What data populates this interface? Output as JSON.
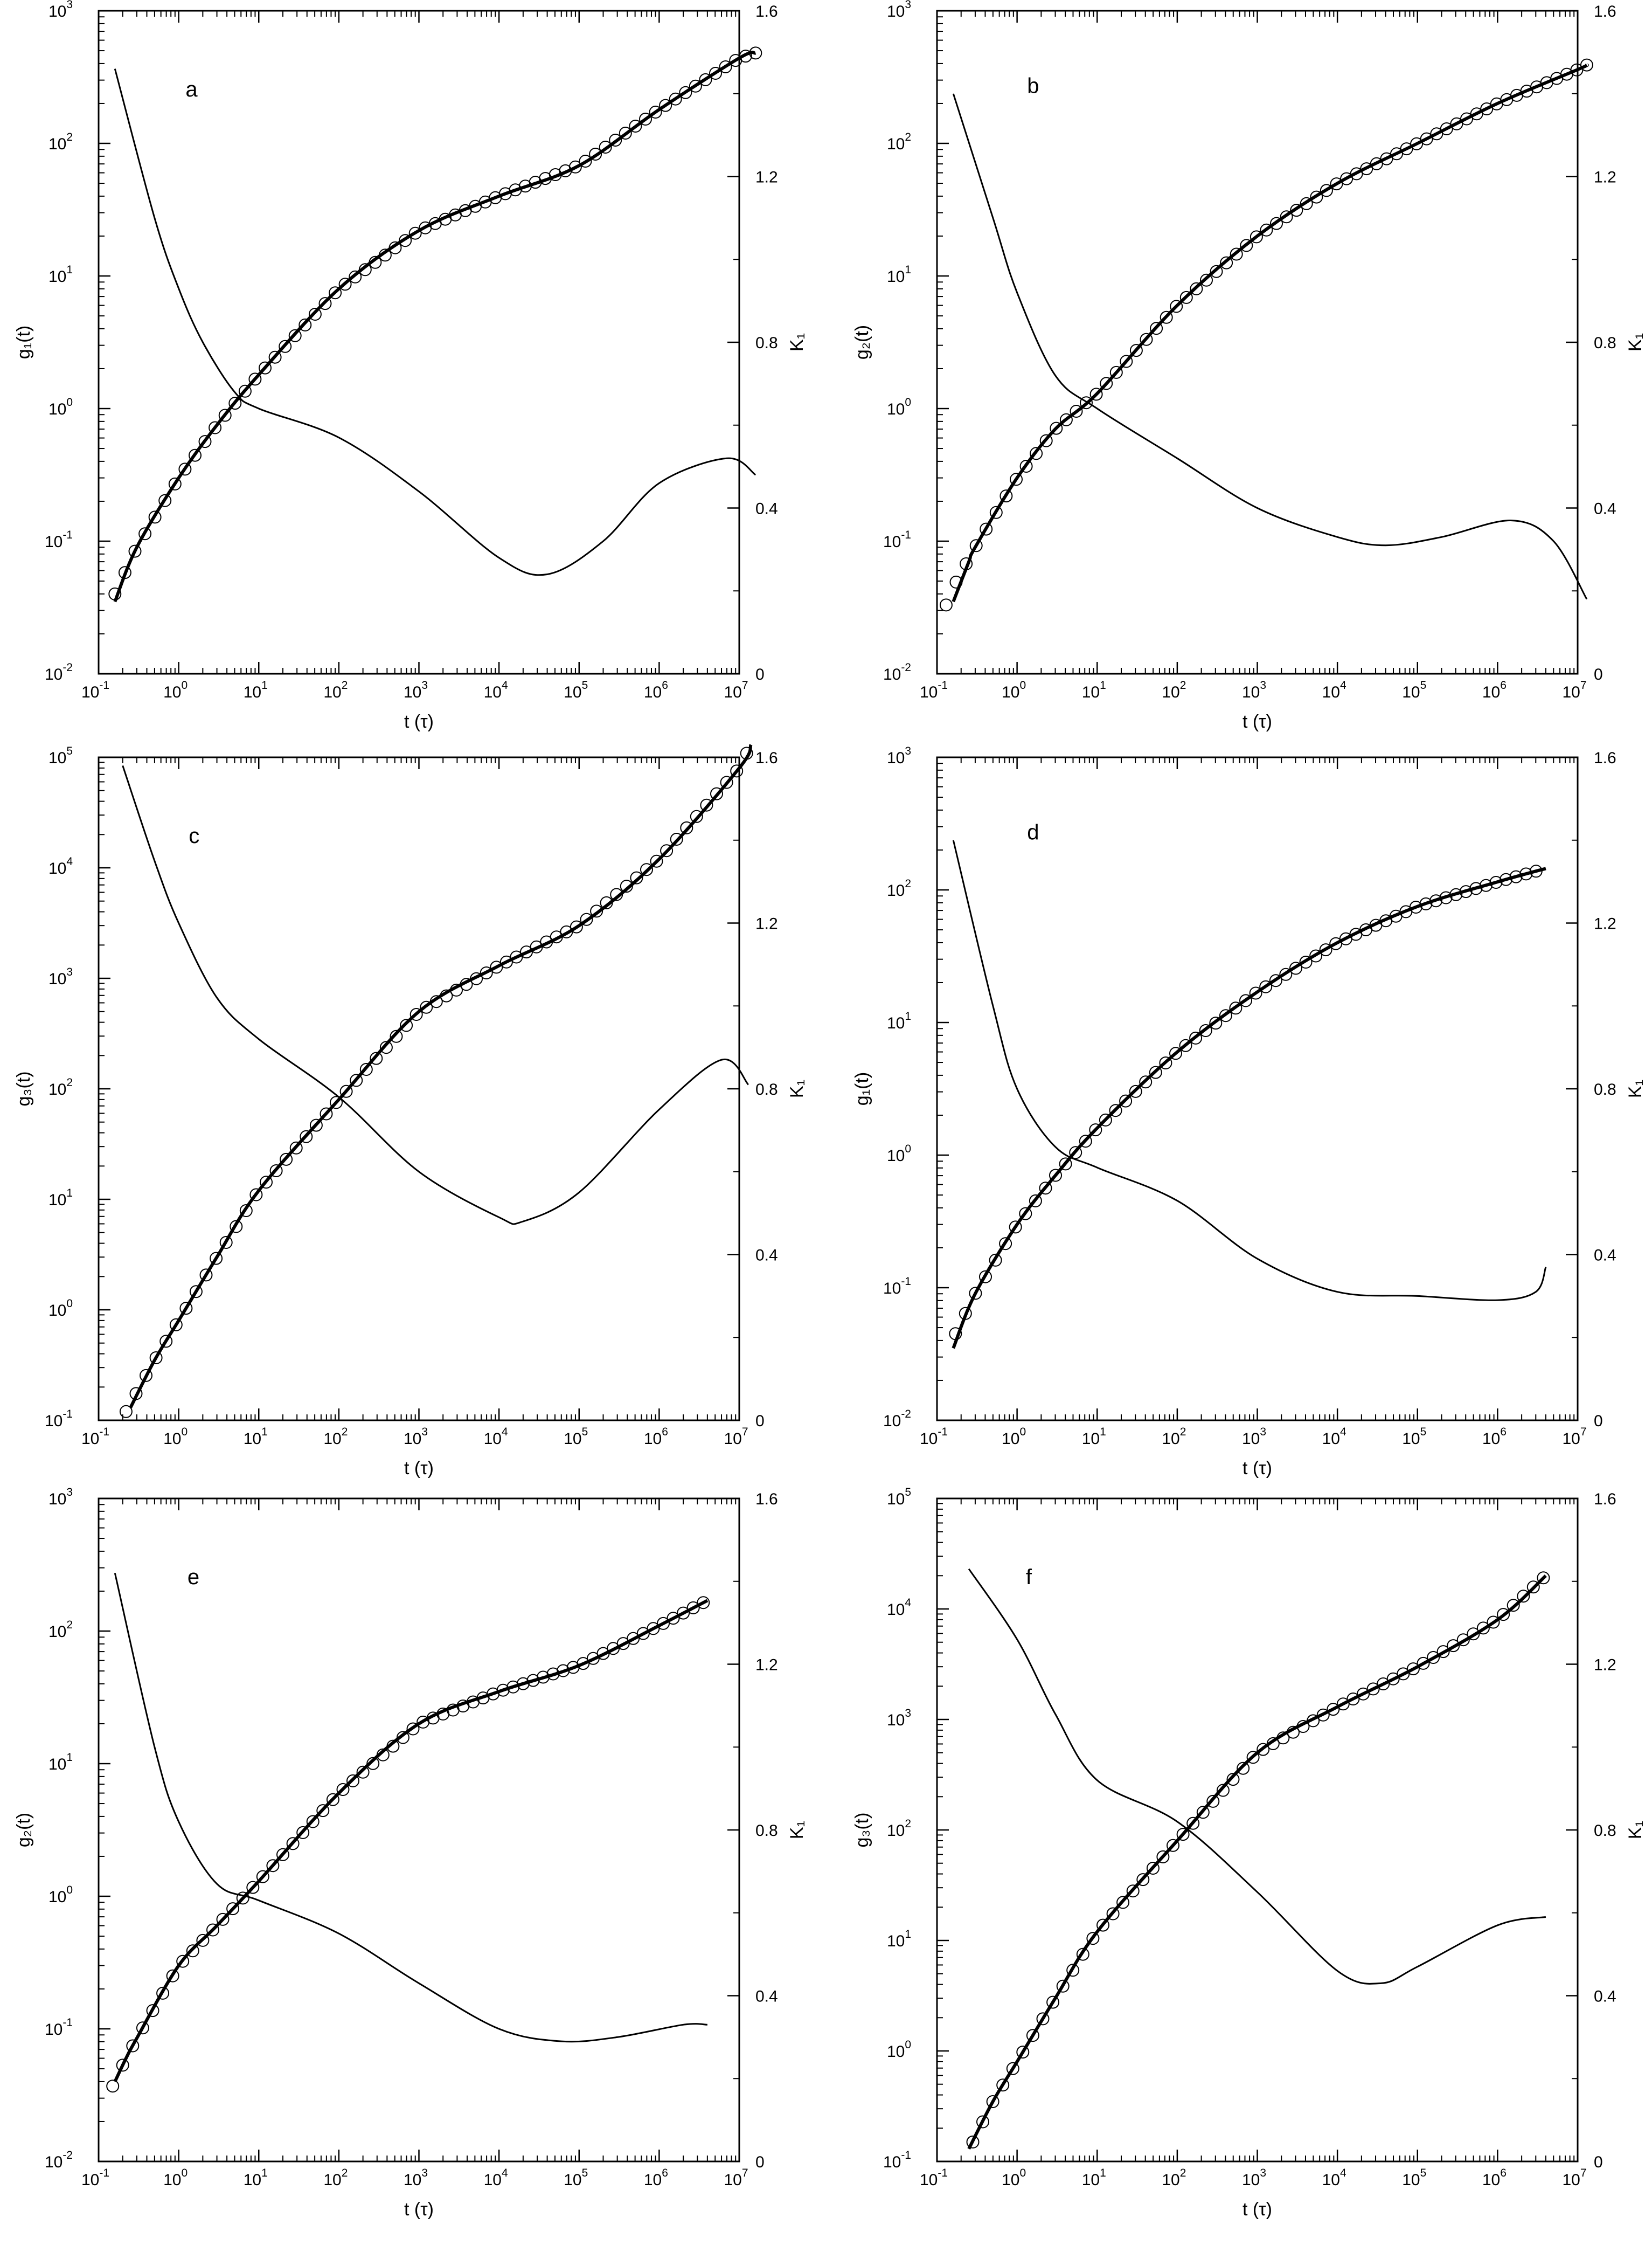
{
  "chart_data": [
    {
      "type": "line",
      "panel_label": "a",
      "xlabel": "t (τ)",
      "ylabel": "g₁(t)",
      "ylabel_right": "K₁",
      "x_scale": "log",
      "y_scale": "log",
      "xlim": [
        0.1,
        20000000
      ],
      "xlim_decades": [
        -1,
        7
      ],
      "ylim": [
        0.01,
        1000
      ],
      "ylim_decades": [
        -2,
        3
      ],
      "y2lim": [
        0,
        1.6
      ],
      "y2_ticks": [
        0,
        0.4,
        0.8,
        1.2,
        1.6
      ],
      "y2_tick_labels": [
        "0",
        "0.4",
        "0.8",
        "1.2",
        "1.6"
      ],
      "grid": false,
      "series": [
        {
          "role": "g_fit_curve",
          "axis": "left",
          "style": "thick line",
          "x": [
            0.16,
            0.3,
            1,
            3,
            10,
            100,
            1000,
            10000,
            100000,
            1000000,
            10000000,
            16000000
          ],
          "y": [
            0.035,
            0.09,
            0.3,
            0.75,
            1.8,
            8,
            22,
            40,
            68,
            180,
            440,
            480
          ]
        },
        {
          "role": "g_simulation_points",
          "axis": "left",
          "style": "open circles",
          "x": [
            0.16,
            0.3,
            1,
            3,
            10,
            100,
            1000,
            10000,
            100000,
            1000000,
            10000000,
            16000000
          ],
          "y": [
            0.04,
            0.09,
            0.3,
            0.75,
            1.8,
            8,
            22,
            40,
            68,
            180,
            440,
            480
          ]
        },
        {
          "role": "K_curve",
          "axis": "right",
          "style": "thin line",
          "x": [
            0.16,
            0.5,
            1,
            2,
            5,
            10,
            100,
            1000,
            10000,
            40000,
            200000,
            1000000,
            7000000,
            16000000
          ],
          "y": [
            1.46,
            1.1,
            0.93,
            0.8,
            0.68,
            0.64,
            0.57,
            0.44,
            0.28,
            0.24,
            0.32,
            0.46,
            0.52,
            0.48
          ]
        }
      ]
    },
    {
      "type": "line",
      "panel_label": "b",
      "xlabel": "t (τ)",
      "ylabel": "g₂(t)",
      "ylabel_right": "K₁",
      "x_scale": "log",
      "y_scale": "log",
      "xlim": [
        0.1,
        20000000
      ],
      "xlim_decades": [
        -1,
        7
      ],
      "ylim": [
        0.01,
        1000
      ],
      "ylim_decades": [
        -2,
        3
      ],
      "y2lim": [
        0,
        1.6
      ],
      "y2_ticks": [
        0,
        0.4,
        0.8,
        1.2,
        1.6
      ],
      "y2_tick_labels": [
        "0",
        "0.4",
        "0.8",
        "1.2",
        "1.6"
      ],
      "grid": false,
      "series": [
        {
          "role": "g_fit_curve",
          "axis": "left",
          "style": "thick line",
          "x": [
            0.16,
            0.25,
            0.3,
            1,
            3,
            10,
            100,
            1000,
            10000,
            100000,
            1000000,
            10000000,
            13000000
          ],
          "y": [
            0.035,
            0.07,
            0.09,
            0.3,
            0.7,
            1.3,
            6,
            20,
            50,
            100,
            200,
            360,
            390
          ]
        },
        {
          "role": "g_simulation_points",
          "axis": "left",
          "style": "open circles",
          "x": [
            0.13,
            0.16,
            0.3,
            1,
            3,
            10,
            100,
            1000,
            10000,
            100000,
            1000000,
            10000000,
            13000000
          ],
          "y": [
            0.033,
            0.045,
            0.09,
            0.3,
            0.7,
            1.3,
            6,
            20,
            50,
            100,
            200,
            360,
            390
          ]
        },
        {
          "role": "K_curve",
          "axis": "right",
          "style": "thin line",
          "x": [
            0.16,
            0.5,
            1,
            3,
            10,
            100,
            1000,
            10000,
            40000,
            200000,
            1500000,
            5000000,
            13000000
          ],
          "y": [
            1.4,
            1.1,
            0.92,
            0.72,
            0.64,
            0.52,
            0.4,
            0.33,
            0.31,
            0.33,
            0.37,
            0.32,
            0.18
          ]
        }
      ]
    },
    {
      "type": "line",
      "panel_label": "c",
      "xlabel": "t (τ)",
      "ylabel": "g₃(t)",
      "ylabel_right": "K₁",
      "x_scale": "log",
      "y_scale": "log",
      "xlim": [
        0.1,
        20000000
      ],
      "xlim_decades": [
        -1,
        7
      ],
      "ylim": [
        0.1,
        200000
      ],
      "ylim_decades": [
        -1,
        5
      ],
      "y2lim": [
        0,
        1.6
      ],
      "y2_ticks": [
        0,
        0.4,
        0.8,
        1.2,
        1.6
      ],
      "y2_tick_labels": [
        "0",
        "0.4",
        "0.8",
        "1.2",
        "1.6"
      ],
      "grid": false,
      "series": [
        {
          "role": "g_fit_curve",
          "axis": "left",
          "style": "thick line",
          "x": [
            0.25,
            0.5,
            1,
            3,
            10,
            100,
            1000,
            10000,
            100000,
            1000000,
            10000000,
            14000000
          ],
          "y": [
            0.13,
            0.35,
            0.8,
            3,
            12,
            80,
            500,
            1300,
            3000,
            12000,
            80000,
            130000
          ]
        },
        {
          "role": "g_simulation_points",
          "axis": "left",
          "style": "open circles",
          "x": [
            0.22,
            0.5,
            1,
            3,
            10,
            100,
            1000,
            10000,
            100000,
            1000000,
            10000000,
            14000000
          ],
          "y": [
            0.12,
            0.35,
            0.8,
            3,
            12,
            80,
            500,
            1300,
            3000,
            12000,
            80000,
            130000
          ]
        },
        {
          "role": "K_curve",
          "axis": "right",
          "style": "thin line",
          "x": [
            0.2,
            0.5,
            1,
            3,
            10,
            100,
            1000,
            10000,
            20000,
            100000,
            1000000,
            6000000,
            13000000
          ],
          "y": [
            1.58,
            1.35,
            1.2,
            1.02,
            0.92,
            0.78,
            0.6,
            0.49,
            0.48,
            0.55,
            0.75,
            0.87,
            0.81
          ]
        }
      ]
    },
    {
      "type": "line",
      "panel_label": "d",
      "xlabel": "t (τ)",
      "ylabel": "g₁(t)",
      "ylabel_right": "K₁",
      "x_scale": "log",
      "y_scale": "log",
      "xlim": [
        0.1,
        10000000
      ],
      "xlim_decades": [
        -1,
        7
      ],
      "ylim": [
        0.01,
        1000
      ],
      "ylim_decades": [
        -2,
        3
      ],
      "y2lim": [
        0,
        1.6
      ],
      "y2_ticks": [
        0,
        0.4,
        0.8,
        1.2,
        1.6
      ],
      "y2_tick_labels": [
        "0",
        "0.4",
        "0.8",
        "1.2",
        "1.6"
      ],
      "grid": false,
      "series": [
        {
          "role": "g_fit_curve",
          "axis": "left",
          "style": "thick line",
          "x": [
            0.16,
            0.3,
            1,
            3,
            10,
            100,
            1000,
            10000,
            100000,
            1000000,
            4000000
          ],
          "y": [
            0.035,
            0.09,
            0.3,
            0.7,
            1.6,
            6,
            17,
            40,
            75,
            115,
            145
          ]
        },
        {
          "role": "g_simulation_points",
          "axis": "left",
          "style": "open circles",
          "x": [
            0.17,
            0.3,
            1,
            3,
            10,
            100,
            1000,
            10000,
            100000,
            1000000,
            4000000
          ],
          "y": [
            0.045,
            0.09,
            0.3,
            0.7,
            1.6,
            6,
            17,
            40,
            75,
            115,
            145
          ]
        },
        {
          "role": "K_curve",
          "axis": "right",
          "style": "thin line",
          "x": [
            0.16,
            0.5,
            1,
            3,
            10,
            100,
            1000,
            10000,
            100000,
            1000000,
            3000000,
            4000000
          ],
          "y": [
            1.4,
            1.0,
            0.8,
            0.66,
            0.61,
            0.53,
            0.39,
            0.31,
            0.3,
            0.29,
            0.31,
            0.37
          ]
        }
      ]
    },
    {
      "type": "line",
      "panel_label": "e",
      "xlabel": "t (τ)",
      "ylabel": "g₂(t)",
      "ylabel_right": "K₁",
      "x_scale": "log",
      "y_scale": "log",
      "xlim": [
        0.1,
        10000000
      ],
      "xlim_decades": [
        -1,
        7
      ],
      "ylim": [
        0.01,
        1000
      ],
      "ylim_decades": [
        -2,
        3
      ],
      "y2lim": [
        0,
        1.6
      ],
      "y2_ticks": [
        0,
        0.4,
        0.8,
        1.2,
        1.6
      ],
      "y2_tick_labels": [
        "0",
        "0.4",
        "0.8",
        "1.2",
        "1.6"
      ],
      "grid": false,
      "series": [
        {
          "role": "g_fit_curve",
          "axis": "left",
          "style": "thick line",
          "x": [
            0.16,
            0.22,
            0.3,
            1,
            3,
            10,
            100,
            1000,
            10000,
            100000,
            1000000,
            4000000
          ],
          "y": [
            0.04,
            0.06,
            0.085,
            0.3,
            0.6,
            1.3,
            6,
            20,
            35,
            55,
            110,
            170
          ]
        },
        {
          "role": "g_simulation_points",
          "axis": "left",
          "style": "open circles",
          "x": [
            0.15,
            0.22,
            0.3,
            1,
            3,
            10,
            100,
            1000,
            10000,
            100000,
            1000000,
            4000000
          ],
          "y": [
            0.037,
            0.06,
            0.085,
            0.3,
            0.6,
            1.3,
            6,
            20,
            35,
            55,
            110,
            170
          ]
        },
        {
          "role": "K_curve",
          "axis": "right",
          "style": "thin line",
          "x": [
            0.16,
            0.5,
            1,
            3,
            10,
            100,
            1000,
            10000,
            60000,
            300000,
            2000000,
            4000000
          ],
          "y": [
            1.42,
            1.0,
            0.82,
            0.67,
            0.63,
            0.55,
            0.43,
            0.32,
            0.29,
            0.3,
            0.33,
            0.33
          ]
        }
      ]
    },
    {
      "type": "line",
      "panel_label": "f",
      "xlabel": "t (τ)",
      "ylabel": "g₃(t)",
      "ylabel_right": "K₁",
      "x_scale": "log",
      "y_scale": "log",
      "xlim": [
        0.1,
        10000000
      ],
      "xlim_decades": [
        -1,
        7
      ],
      "ylim": [
        0.1,
        100000
      ],
      "ylim_decades": [
        -1,
        5
      ],
      "y2lim": [
        0,
        1.6
      ],
      "y2_ticks": [
        0,
        0.4,
        0.8,
        1.2,
        1.6
      ],
      "y2_tick_labels": [
        "0",
        "0.4",
        "0.8",
        "1.2",
        "1.6"
      ],
      "grid": false,
      "series": [
        {
          "role": "g_fit_curve",
          "axis": "left",
          "style": "thick line",
          "x": [
            0.25,
            0.5,
            1,
            3,
            10,
            100,
            1000,
            10000,
            100000,
            1000000,
            4000000
          ],
          "y": [
            0.13,
            0.35,
            0.8,
            3,
            12,
            80,
            500,
            1300,
            3000,
            8000,
            20000
          ]
        },
        {
          "role": "g_simulation_points",
          "axis": "left",
          "style": "open circles",
          "x": [
            0.28,
            0.5,
            1,
            3,
            10,
            100,
            1000,
            10000,
            100000,
            1000000,
            4000000
          ],
          "y": [
            0.15,
            0.35,
            0.8,
            3,
            12,
            80,
            500,
            1300,
            3000,
            8000,
            20000
          ]
        },
        {
          "role": "K_curve",
          "axis": "right",
          "style": "thin line",
          "x": [
            0.25,
            1,
            3,
            10,
            100,
            1000,
            10000,
            35000,
            100000,
            1000000,
            4000000
          ],
          "y": [
            1.43,
            1.26,
            1.08,
            0.92,
            0.82,
            0.65,
            0.46,
            0.43,
            0.47,
            0.57,
            0.59
          ]
        }
      ]
    }
  ]
}
